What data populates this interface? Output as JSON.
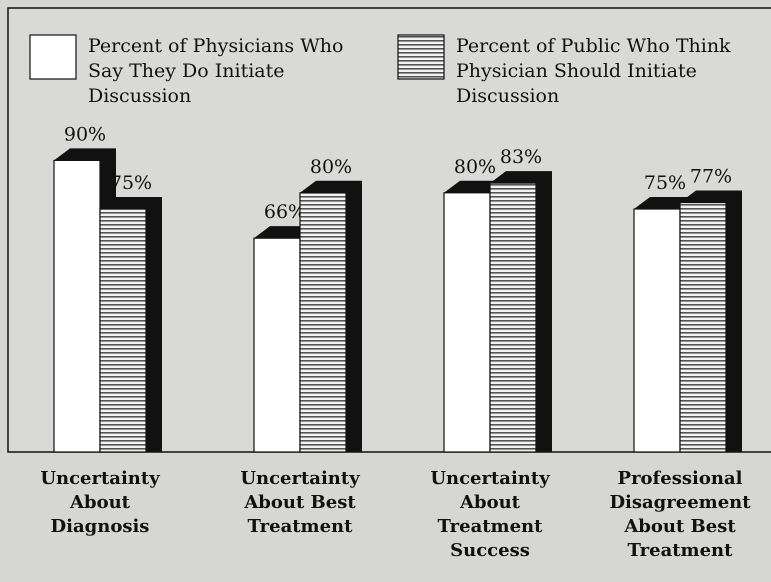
{
  "chart_data": {
    "type": "bar",
    "categories": [
      "Uncertainty\nAbout\nDiagnosis",
      "Uncertainty\nAbout Best\nTreatment",
      "Uncertainty\nAbout\nTreatment\nSuccess",
      "Professional\nDisagreement\nAbout Best\nTreatment"
    ],
    "series": [
      {
        "name": "Percent of Physicians Who\nSay They Do Initiate\nDiscussion",
        "color": "#ffffff",
        "values": [
          90,
          66,
          80,
          75
        ],
        "value_labels": [
          "90%",
          "66%",
          "80%",
          "75%"
        ]
      },
      {
        "name": "Percent of Public Who Think\nPhysician Should Initiate\nDiscussion",
        "color": "striped",
        "values": [
          75,
          80,
          83,
          77
        ],
        "value_labels": [
          "75%",
          "80%",
          "83%",
          "77%"
        ]
      }
    ]
  }
}
